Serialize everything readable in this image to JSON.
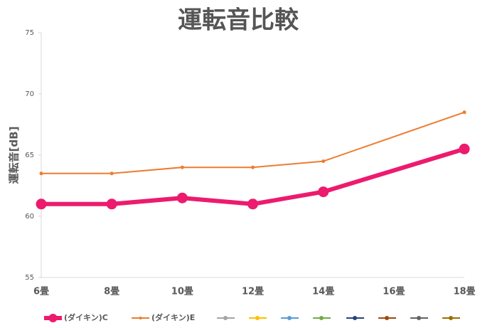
{
  "chart_data": {
    "type": "line",
    "title": "運転音比較",
    "y_label": "運転音[dB]",
    "categories": [
      "6畳",
      "8畳",
      "10畳",
      "12畳",
      "14畳",
      "16畳",
      "18畳"
    ],
    "series": [
      {
        "name": "(ダイキン)C",
        "color": "#ec1b6d",
        "values": [
          61,
          61,
          61.5,
          61,
          62,
          null,
          65.5
        ]
      },
      {
        "name": "(ダイキン)E",
        "color": "#ed7d31",
        "values": [
          63.5,
          63.5,
          64,
          64,
          64.5,
          null,
          68.5
        ]
      }
    ],
    "connect_gaps": true,
    "ylim": [
      55,
      75
    ],
    "yticks": [
      55,
      60,
      65,
      70,
      75
    ],
    "grid": false,
    "legend": "bottom"
  }
}
